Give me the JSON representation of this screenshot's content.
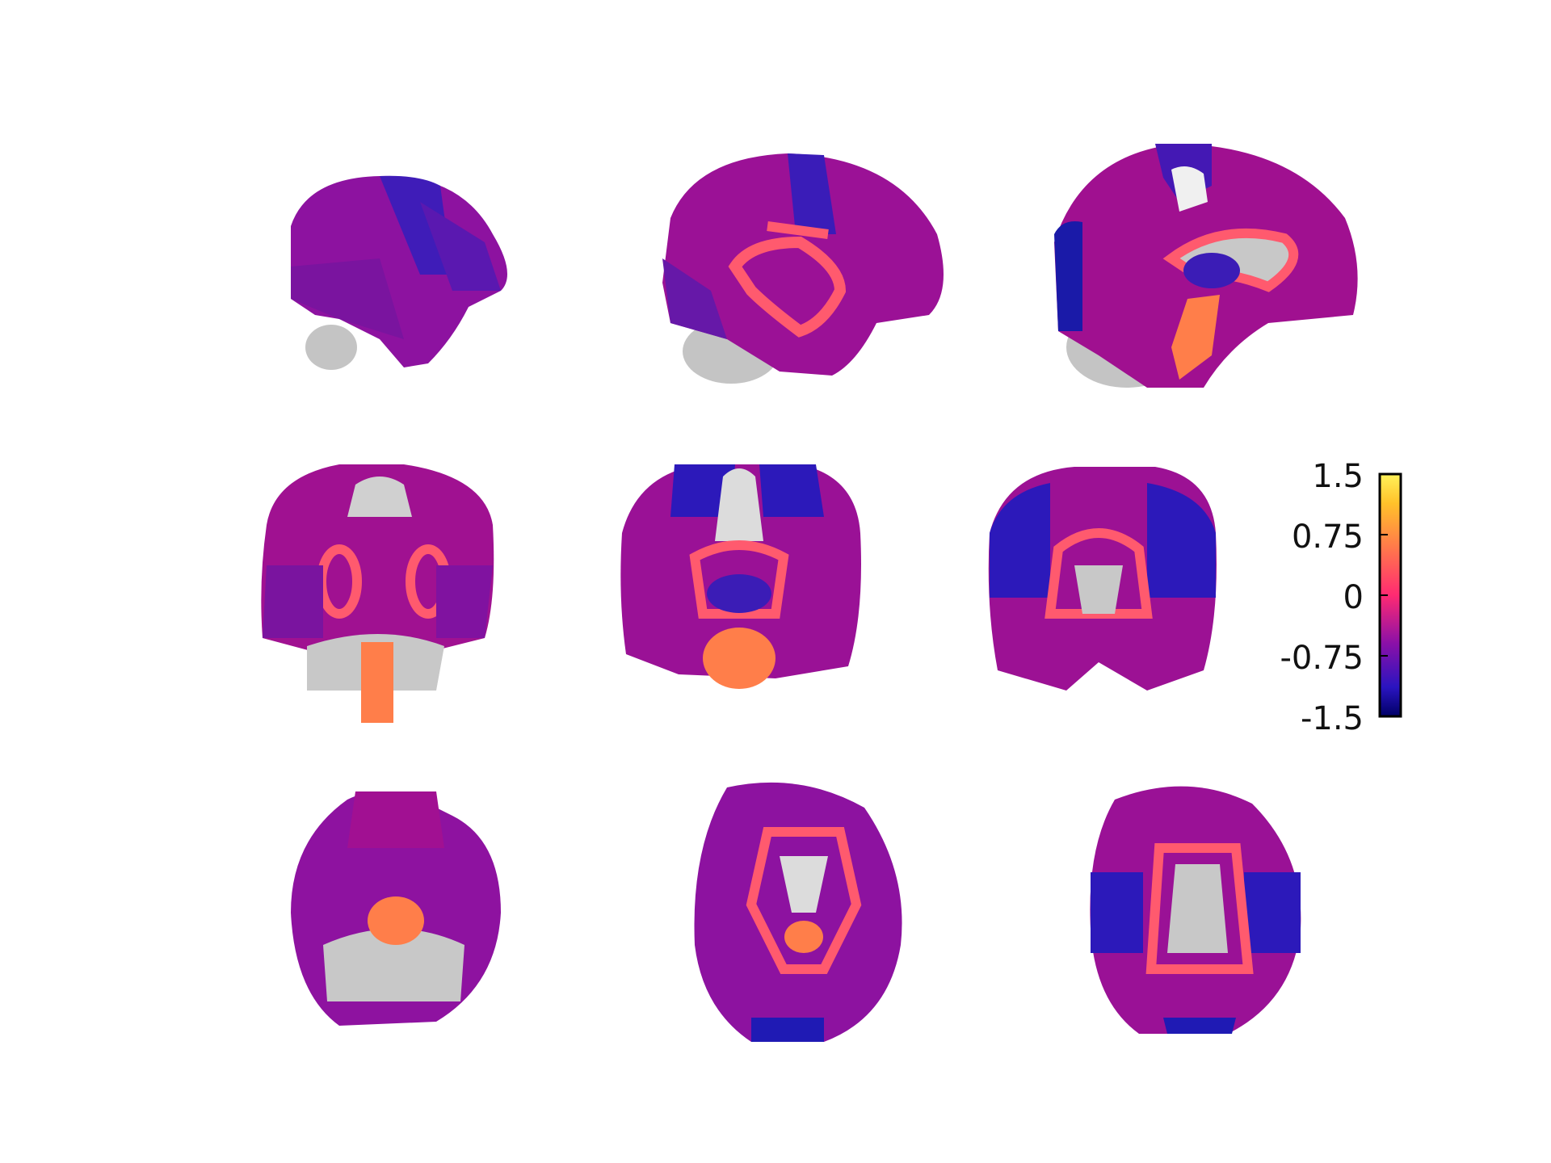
{
  "figure": {
    "colormap_stops": [
      "#0a0a78",
      "#2a19b8",
      "#7a14a8",
      "#b4128f",
      "#ff3a6c",
      "#ff8c4a",
      "#ffd42a",
      "#fff25a"
    ],
    "background_anatomy_color": "#c8c8c8",
    "panels": [
      {
        "view": "sagittal-left-lateral"
      },
      {
        "view": "sagittal-mid-lateral"
      },
      {
        "view": "sagittal-medial"
      },
      {
        "view": "coronal-posterior"
      },
      {
        "view": "coronal-middle"
      },
      {
        "view": "coronal-anterior"
      },
      {
        "view": "axial-inferior"
      },
      {
        "view": "axial-middle"
      },
      {
        "view": "axial-superior"
      }
    ]
  },
  "colorbar": {
    "tick_labels": [
      "1.5",
      "0.75",
      "0",
      "-0.75",
      "-1.5"
    ],
    "range": [
      -1.5,
      1.5
    ]
  }
}
